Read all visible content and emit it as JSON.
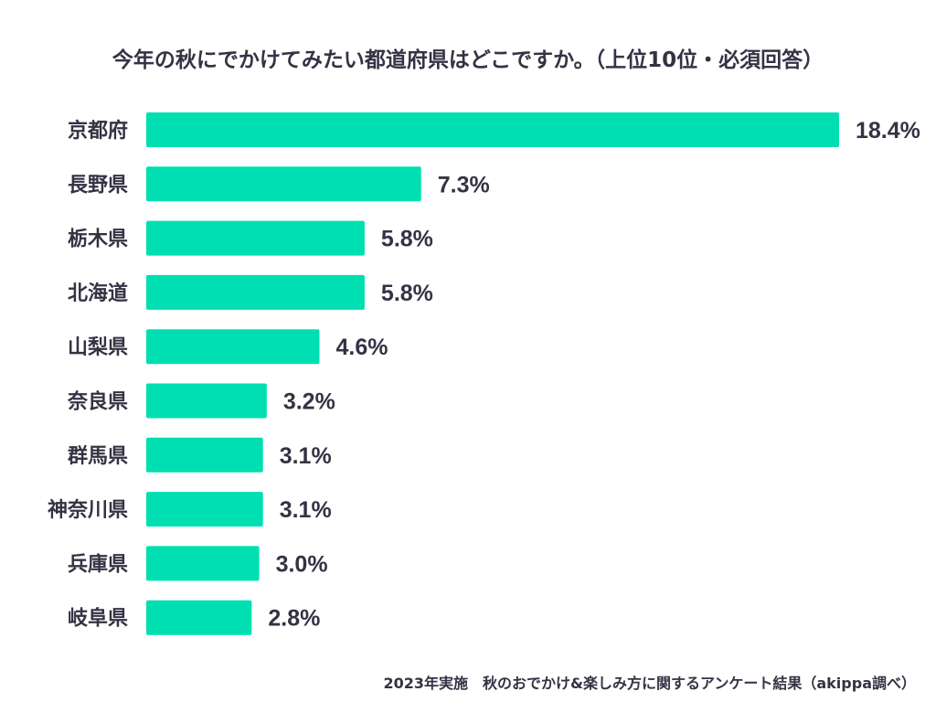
{
  "chart_data": {
    "type": "bar",
    "orientation": "horizontal",
    "title": "今年の秋にでかけてみたい都道府県はどこですか。（上位10位・必須回答）",
    "categories": [
      "京都府",
      "長野県",
      "栃木県",
      "北海道",
      "山梨県",
      "奈良県",
      "群馬県",
      "神奈川県",
      "兵庫県",
      "岐阜県"
    ],
    "values": [
      18.4,
      7.3,
      5.8,
      5.8,
      4.6,
      3.2,
      3.1,
      3.1,
      3.0,
      2.8
    ],
    "value_labels": [
      "18.4%",
      "7.3%",
      "5.8%",
      "5.8%",
      "4.6%",
      "3.2%",
      "3.1%",
      "3.1%",
      "3.0%",
      "2.8%"
    ],
    "unit": "%",
    "xlabel": "",
    "ylabel": "",
    "grid": false,
    "legend": "none",
    "bar_color": "#00dfb2"
  },
  "footer": "2023年実施　秋のおでかけ&楽しみ方に関するアンケート結果（akippa調べ）"
}
